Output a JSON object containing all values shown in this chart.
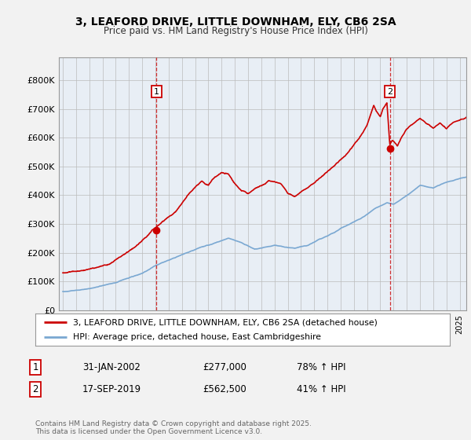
{
  "title_line1": "3, LEAFORD DRIVE, LITTLE DOWNHAM, ELY, CB6 2SA",
  "title_line2": "Price paid vs. HM Land Registry's House Price Index (HPI)",
  "legend_line1": "3, LEAFORD DRIVE, LITTLE DOWNHAM, ELY, CB6 2SA (detached house)",
  "legend_line2": "HPI: Average price, detached house, East Cambridgeshire",
  "annotation1_date": "31-JAN-2002",
  "annotation1_price": "£277,000",
  "annotation1_hpi": "78% ↑ HPI",
  "annotation2_date": "17-SEP-2019",
  "annotation2_price": "£562,500",
  "annotation2_hpi": "41% ↑ HPI",
  "footer": "Contains HM Land Registry data © Crown copyright and database right 2025.\nThis data is licensed under the Open Government Licence v3.0.",
  "ylim": [
    0,
    880000
  ],
  "yticks": [
    0,
    100000,
    200000,
    300000,
    400000,
    500000,
    600000,
    700000,
    800000
  ],
  "ytick_labels": [
    "£0",
    "£100K",
    "£200K",
    "£300K",
    "£400K",
    "£500K",
    "£600K",
    "£700K",
    "£800K"
  ],
  "bg_color": "#f2f2f2",
  "plot_bg_color": "#e8eef5",
  "red_color": "#cc0000",
  "blue_color": "#7aa8d2",
  "sale1_year": 2002.08,
  "sale1_price": 277000,
  "sale2_year": 2019.72,
  "sale2_price": 562500,
  "xmin": 1995.0,
  "xmax": 2025.5
}
